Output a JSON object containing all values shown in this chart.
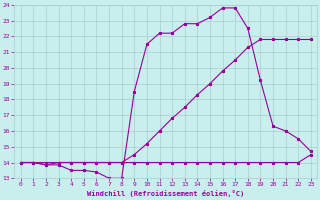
{
  "xlabel": "Windchill (Refroidissement éolien,°C)",
  "bg_color": "#c8eeee",
  "grid_color": "#aacccc",
  "line_color": "#990099",
  "xlim": [
    -0.5,
    23.5
  ],
  "ylim": [
    13,
    24
  ],
  "xticks": [
    0,
    1,
    2,
    3,
    4,
    5,
    6,
    7,
    8,
    9,
    10,
    11,
    12,
    13,
    14,
    15,
    16,
    17,
    18,
    19,
    20,
    21,
    22,
    23
  ],
  "yticks": [
    13,
    14,
    15,
    16,
    17,
    18,
    19,
    20,
    21,
    22,
    23,
    24
  ],
  "line1_x": [
    0,
    1,
    2,
    3,
    4,
    5,
    6,
    7,
    8,
    9,
    10,
    11,
    12,
    13,
    14,
    15,
    16,
    17,
    18,
    19,
    20,
    21,
    22,
    23
  ],
  "line1_y": [
    14.0,
    14.0,
    13.85,
    14.0,
    14.0,
    14.0,
    14.0,
    14.0,
    14.0,
    14.0,
    14.0,
    14.0,
    14.0,
    14.0,
    14.0,
    14.0,
    14.0,
    14.0,
    14.0,
    14.0,
    14.0,
    14.0,
    14.0,
    14.5
  ],
  "line2_x": [
    0,
    1,
    2,
    3,
    4,
    5,
    6,
    7,
    8,
    9,
    10,
    11,
    12,
    13,
    14,
    15,
    16,
    17,
    18,
    19,
    20,
    21,
    22,
    23
  ],
  "line2_y": [
    14.0,
    14.0,
    14.0,
    14.0,
    14.0,
    14.0,
    14.0,
    14.0,
    14.0,
    14.5,
    15.2,
    16.0,
    16.8,
    17.5,
    18.3,
    19.0,
    19.8,
    20.5,
    21.3,
    21.8,
    21.8,
    21.8,
    21.8,
    21.8
  ],
  "line3_x": [
    0,
    1,
    2,
    3,
    4,
    5,
    6,
    7,
    8,
    9,
    10,
    11,
    12,
    13,
    14,
    15,
    16,
    17,
    18,
    19,
    20,
    21,
    22,
    23
  ],
  "line3_y": [
    14.0,
    14.0,
    13.85,
    13.85,
    13.5,
    13.5,
    13.4,
    13.0,
    13.0,
    18.5,
    21.5,
    22.2,
    22.2,
    22.8,
    22.8,
    23.2,
    23.8,
    23.8,
    22.5,
    19.2,
    16.3,
    16.0,
    15.5,
    14.7
  ]
}
